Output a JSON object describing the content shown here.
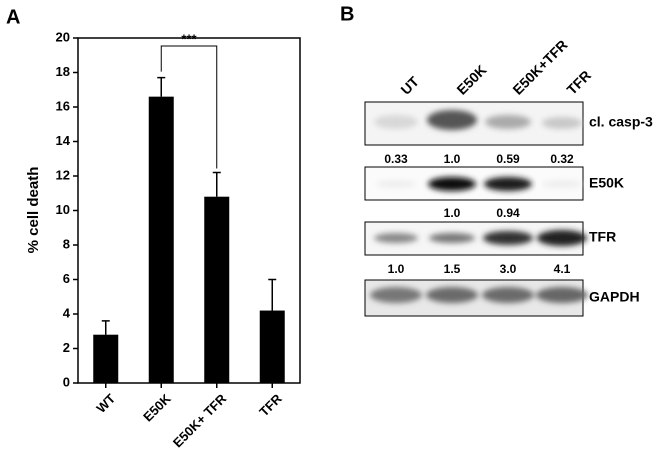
{
  "panels": [
    "A",
    "B"
  ],
  "chart_data": {
    "type": "bar",
    "ylabel": "% cell death",
    "categories": [
      "WT",
      "E50K",
      "E50K+ TFR",
      "TFR"
    ],
    "values": [
      2.8,
      16.6,
      10.8,
      4.2
    ],
    "errors": [
      0.8,
      1.1,
      1.4,
      1.8
    ],
    "color": "#000000",
    "ylim": [
      0,
      20
    ],
    "yticks": [
      0,
      2,
      4,
      6,
      8,
      10,
      12,
      14,
      16,
      18,
      20
    ],
    "annotation": "***"
  },
  "blot": {
    "lanes": [
      "UT",
      "E50K",
      "E50K+TFR",
      "TFR"
    ],
    "rows": [
      {
        "label": "cl. casp-3",
        "quantities": [
          "0.33",
          "1.0",
          "0.59",
          "0.32"
        ]
      },
      {
        "label": "E50K",
        "quantities": [
          null,
          "1.0",
          "0.94",
          null
        ]
      },
      {
        "label": "TFR",
        "quantities": [
          "1.0",
          "1.5",
          "3.0",
          "4.1"
        ]
      },
      {
        "label": "GAPDH"
      }
    ]
  }
}
